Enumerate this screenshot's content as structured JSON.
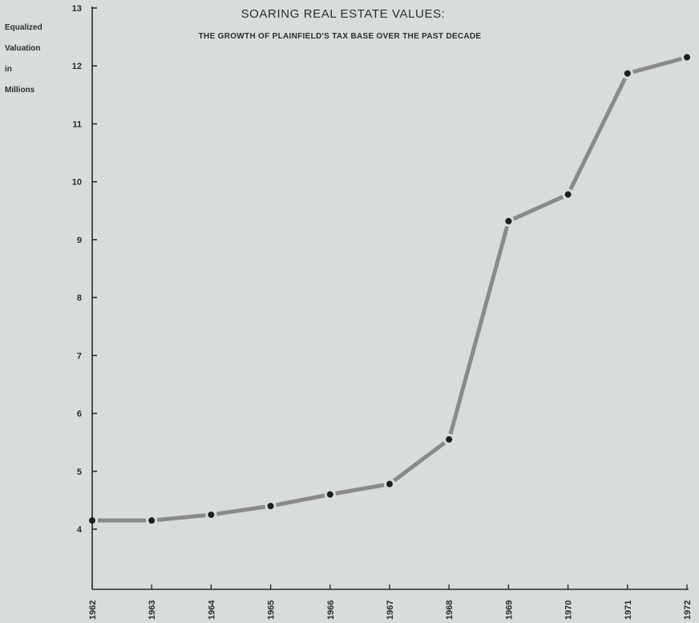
{
  "chart_data": {
    "type": "line",
    "title": "SOARING REAL ESTATE VALUES:",
    "subtitle": "THE GROWTH OF PLAINFIELD'S TAX BASE OVER THE PAST DECADE",
    "ylabel_lines": [
      "Equalized",
      "Valuation",
      "in",
      "Millions"
    ],
    "xlabel": "",
    "x": [
      1962,
      1963,
      1964,
      1965,
      1966,
      1967,
      1968,
      1969,
      1970,
      1971,
      1972
    ],
    "x_tick_labels": [
      "1962",
      "1963",
      "1964",
      "1965",
      "1966",
      "1967",
      "1968",
      "1969",
      "1970",
      "1971",
      "1972"
    ],
    "y": [
      4.15,
      4.15,
      4.25,
      4.4,
      4.6,
      4.78,
      5.55,
      9.32,
      9.78,
      11.87,
      12.15
    ],
    "y_ticks": [
      4,
      5,
      6,
      7,
      8,
      9,
      10,
      11,
      12,
      13
    ],
    "ylim": [
      3,
      13
    ],
    "xlim": [
      1962,
      1972
    ],
    "grid": false,
    "legend": "none",
    "colors": {
      "background": "#d9dcdc",
      "axis": "#2b2b2b",
      "line": "#8a8a8a",
      "marker": "#1f1f1f",
      "text": "#2d2d2d"
    }
  }
}
